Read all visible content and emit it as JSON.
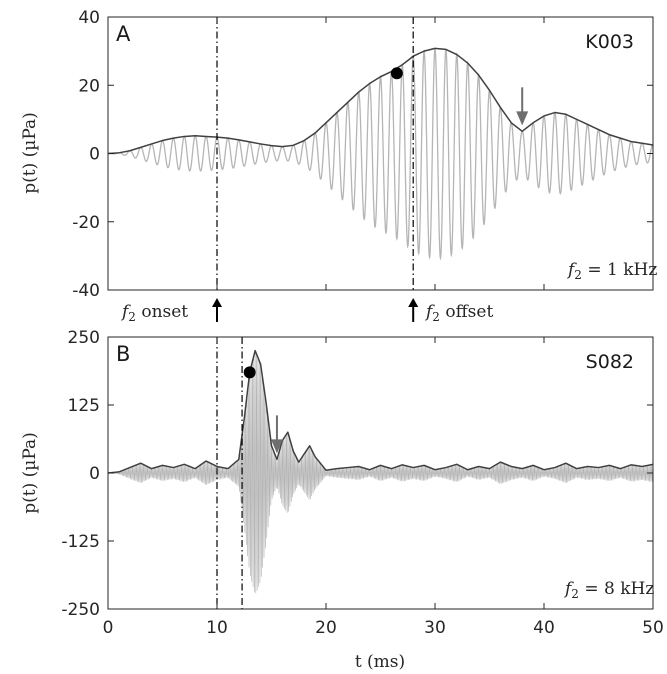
{
  "chart_data": [
    {
      "type": "line",
      "panel_label": "A",
      "subject_id": "K003",
      "annotation_freq": "f",
      "annotation_sub": "2",
      "annotation_value": " = 1 kHz",
      "ylabel": "p(t) (µPa)",
      "ylim": [
        -40,
        40
      ],
      "yticks": [
        40,
        20,
        0,
        -20,
        -40
      ],
      "ytick_labels": [
        "40",
        "20",
        "0",
        "-20",
        "-40"
      ],
      "xlim": [
        0,
        50
      ],
      "carrier_khz": 1,
      "onset_ms": 10,
      "offset_ms": 28,
      "onset_text": " onset",
      "offset_text": " offset",
      "dot": [
        26.5,
        23.5
      ],
      "arrow_x": 38,
      "envelope": {
        "x": [
          0,
          1,
          2,
          3,
          4,
          5,
          6,
          7,
          8,
          9,
          10,
          11,
          12,
          13,
          14,
          15,
          16,
          17,
          18,
          19,
          20,
          21,
          22,
          23,
          24,
          25,
          26,
          27,
          28,
          29,
          30,
          31,
          32,
          33,
          34,
          35,
          36,
          37,
          38,
          39,
          40,
          41,
          42,
          43,
          44,
          45,
          46,
          47,
          48,
          49,
          50
        ],
        "y": [
          0,
          0.2,
          0.8,
          1.8,
          2.8,
          3.8,
          4.5,
          5.0,
          5.2,
          5.0,
          4.8,
          4.5,
          4.0,
          3.4,
          2.8,
          2.3,
          2.0,
          2.4,
          3.8,
          6.0,
          9.0,
          12.0,
          15.0,
          18.0,
          20.5,
          22.5,
          24.0,
          26.0,
          28.5,
          30.0,
          30.8,
          30.5,
          29.0,
          26.5,
          23.0,
          18.5,
          13.5,
          9.0,
          6.5,
          9.0,
          11.0,
          12.0,
          11.5,
          10.0,
          8.5,
          7.0,
          5.5,
          4.5,
          3.5,
          3.0,
          2.5
        ]
      }
    },
    {
      "type": "line",
      "panel_label": "B",
      "subject_id": "S082",
      "annotation_freq": "f",
      "annotation_sub": "2",
      "annotation_value": " = 8 kHz",
      "ylabel": "p(t) (µPa)",
      "xlabel": "t (ms)",
      "ylim": [
        -250,
        250
      ],
      "yticks": [
        250,
        125,
        0,
        -125,
        -250
      ],
      "ytick_labels": [
        "250",
        "125",
        "0",
        "-125",
        "-250"
      ],
      "xlim": [
        0,
        50
      ],
      "xticks": [
        0,
        10,
        20,
        30,
        40,
        50
      ],
      "xtick_labels": [
        "0",
        "10",
        "20",
        "30",
        "40",
        "50"
      ],
      "carrier_khz": 8,
      "onset_ms": 10,
      "offset_ms": 12.3,
      "dot": [
        13.0,
        185
      ],
      "arrow_x": 15.5,
      "envelope": {
        "x": [
          0,
          1,
          2,
          3,
          4,
          5,
          6,
          7,
          8,
          9,
          10,
          11,
          12,
          12.5,
          13,
          13.5,
          14,
          14.5,
          15,
          15.5,
          16,
          16.5,
          17,
          17.5,
          18,
          18.5,
          19,
          20,
          21,
          22,
          23,
          24,
          25,
          26,
          27,
          28,
          29,
          30,
          31,
          32,
          33,
          34,
          35,
          36,
          37,
          38,
          39,
          40,
          41,
          42,
          43,
          44,
          45,
          46,
          47,
          48,
          49,
          50
        ],
        "y": [
          0,
          2,
          10,
          18,
          8,
          14,
          10,
          16,
          8,
          22,
          12,
          8,
          25,
          100,
          185,
          225,
          200,
          130,
          50,
          25,
          60,
          75,
          40,
          20,
          35,
          50,
          30,
          5,
          8,
          10,
          12,
          6,
          14,
          8,
          15,
          10,
          14,
          6,
          10,
          16,
          6,
          12,
          8,
          20,
          12,
          8,
          14,
          6,
          10,
          18,
          8,
          12,
          10,
          14,
          8,
          15,
          12,
          16
        ]
      }
    }
  ]
}
